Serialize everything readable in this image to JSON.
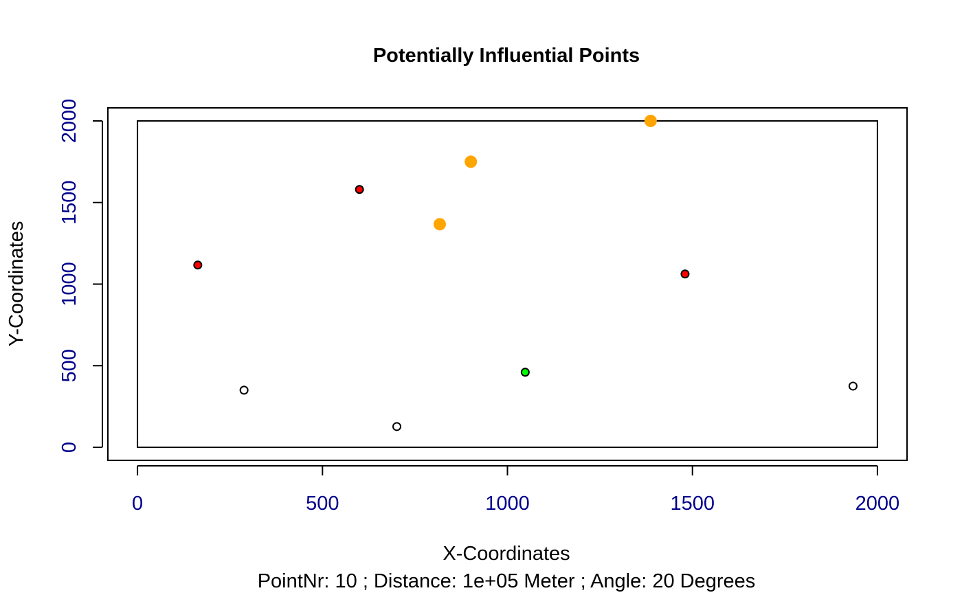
{
  "chart_data": {
    "type": "scatter",
    "title": "Potentially Influential Points",
    "xlabel": "X-Coordinates",
    "ylabel": "Y-Coordinates",
    "subtitle": "PointNr:  10 ; Distance:  1e+05 Meter ; Angle:  20 Degrees",
    "xlim": [
      -80,
      2080
    ],
    "ylim": [
      -80,
      2080
    ],
    "x_ticks": [
      0,
      500,
      1000,
      1500,
      2000
    ],
    "y_ticks": [
      0,
      500,
      1000,
      1500,
      2000
    ],
    "x_tick_labels": [
      "0",
      "500",
      "1000",
      "1500",
      "2000"
    ],
    "y_tick_labels": [
      "0",
      "500",
      "1000",
      "1500",
      "2000"
    ],
    "tick_label_color": "#00008B",
    "grid": false,
    "legend": "none",
    "region_rect": {
      "x": [
        0,
        2000
      ],
      "y": [
        0,
        2000
      ]
    },
    "points": [
      {
        "x": 163,
        "y": 1117,
        "fill": "#FF0000",
        "style": "filled-outlined"
      },
      {
        "x": 600,
        "y": 1580,
        "fill": "#FF0000",
        "style": "filled-outlined"
      },
      {
        "x": 1480,
        "y": 1062,
        "fill": "#FF0000",
        "style": "filled-outlined"
      },
      {
        "x": 288,
        "y": 350,
        "fill": "#FFFFFF",
        "style": "hollow"
      },
      {
        "x": 701,
        "y": 127,
        "fill": "#FFFFFF",
        "style": "hollow"
      },
      {
        "x": 1934,
        "y": 375,
        "fill": "#FFFFFF",
        "style": "hollow"
      },
      {
        "x": 1048,
        "y": 460,
        "fill": "#00FF00",
        "style": "filled-outlined"
      },
      {
        "x": 817,
        "y": 1367,
        "fill": "#FFA500",
        "style": "solid-large"
      },
      {
        "x": 901,
        "y": 1750,
        "fill": "#FFA500",
        "style": "solid-large"
      },
      {
        "x": 1387,
        "y": 2000,
        "fill": "#FFA500",
        "style": "solid-large"
      }
    ]
  }
}
